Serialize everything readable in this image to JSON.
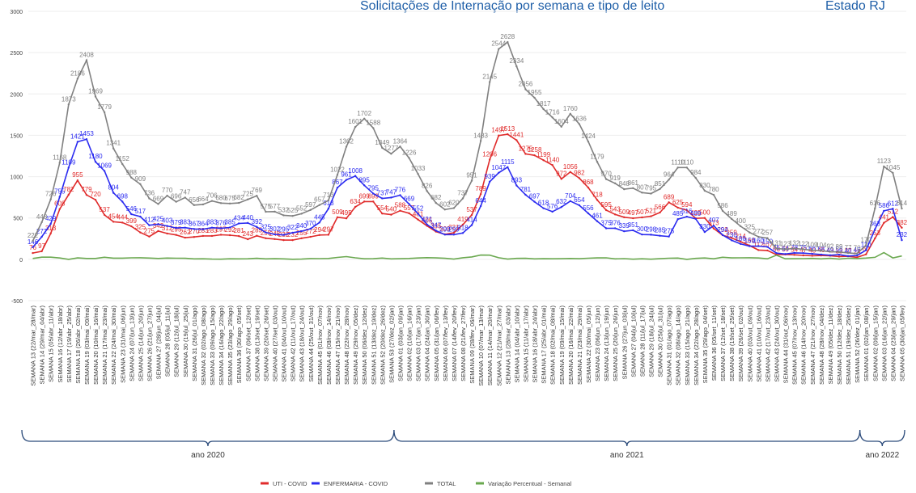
{
  "chart_data": {
    "type": "line",
    "title": "Solicitações de Internação por semana e tipo de leito",
    "subtitle": "Estado RJ",
    "categories": [
      "SEMANA 13 (22/mar_28/mar)",
      "SEMANA 14 (29/mar_04/abr)",
      "SEMANA 15 (05/abr_11/abr)",
      "SEMANA 16 (12/abr_18/abr)",
      "SEMANA 17 (19/abr_25/abr)",
      "SEMANA 18 (26/abr_02/mai)",
      "SEMANA 19 (03/mai_09/mai)",
      "SEMANA 20 (10/mai_16/mai)",
      "SEMANA 21 (17/mai_23/mai)",
      "SEMANA 22 (24/mai_30/mai)",
      "SEMANA 23 (31/mai_06/jun)",
      "SEMANA 24 (07/jun_13/jun)",
      "SEMANA 25 (14/jun_20/jun)",
      "SEMANA 26 (21/jun_27/jun)",
      "SEMANA 27 (28/jun_04/jul)",
      "SEMANA 28 (05/jul_11/jul)",
      "SEMANA 29 (12/jul_18/jul)",
      "SEMANA 30 (19/jul_25/jul)",
      "SEMANA 31 (26/jul_01/ago)",
      "SEMANA 32 (02/ago_08/ago)",
      "SEMANA 33 (09/ago_15/ago)",
      "SEMANA 34 (16/ago_22/ago)",
      "SEMANA 35 (23/ago_29/ago)",
      "SEMANA 36 (30/ago_05/set)",
      "SEMANA 37 (06/set_12/set)",
      "SEMANA 38 (13/set_19/set)",
      "SEMANA 39 (20/set_26/set)",
      "SEMANA 40 (27/set_03/out)",
      "SEMANA 41 (04/out_10/out)",
      "SEMANA 42 (11/out_17/out)",
      "SEMANA 43 (18/out_24/out)",
      "SEMANA 44 (25/out_31/out)",
      "SEMANA 45 (01/nov_07/nov)",
      "SEMANA 46 (08/nov_14/nov)",
      "SEMANA 47 (15/nov_21/nov)",
      "SEMANA 48 (22/nov_28/nov)",
      "SEMANA 49 (29/nov_05/dez)",
      "SEMANA 50 (06/dez_12/dez)",
      "SEMANA 51 (13/dez_19/dez)",
      "SEMANA 52 (20/dez_26/dez)",
      "SEMANA 53 (27/dez_02/jan)",
      "SEMANA 01 (03/jan_09/jan)",
      "SEMANA 02 (10/jan_16/jan)",
      "SEMANA 03 (17/jan_23/jan)",
      "SEMANA 04 (24/jan_30/jan)",
      "SEMANA 05 (31/jan_06/fev)",
      "SEMANA 06 (07/fev_13/fev)",
      "SEMANA 07 (14/fev_20/fev)",
      "SEMANA 08 (21/fev_27/fev)",
      "SEMANA 09 (28/fev_06/mar)",
      "SEMANA 10 (07/mar_13/mar)",
      "SEMANA 11 (14/mar_20/mar)",
      "SEMANA 12 (21/mar_27/mar)",
      "SEMANA 13 (28/mar_03/abr)",
      "SEMANA 14 (04/abr_10/abr)",
      "SEMANA 15 (11/abr_17/abr)",
      "SEMANA 16 (18/abr_24/abr)",
      "SEMANA 17 (25/abr_01/mai)",
      "SEMANA 18 (02/mai_08/mai)",
      "SEMANA 19 (09/mai_15/mai)",
      "SEMANA 20 (16/mai_22/mai)",
      "SEMANA 21 (23/mai_29/mai)",
      "SEMANA 22 (30/mai_05/jun)",
      "SEMANA 23 (06/jun_12/jun)",
      "SEMANA 24 (13/jun_19/jun)",
      "SEMANA 25 (20/jun_26/jun)",
      "SEMANA 26 (27/jun_03/jul)",
      "SEMANA 27 (04/jul_10/jul)",
      "SEMANA 28 (11/jul_17/jul)",
      "SEMANA 29 (18/jul_24/jul)",
      "SEMANA 30 (25/jul_31/jul)",
      "SEMANA 31 (01/ago_07/ago)",
      "SEMANA 32 (08/ago_14/ago)",
      "SEMANA 33 (15/ago_21/ago)",
      "SEMANA 34 (22/ago_28/ago)",
      "SEMANA 35 (29/ago_04/set)",
      "SEMANA 36 (05/set_11/set)",
      "SEMANA 37 (12/set_18/set)",
      "SEMANA 38 (19/set_25/set)",
      "SEMANA 39 (26/set_02/out)",
      "SEMANA 40 (03/out_09/out)",
      "SEMANA 41 (10/out_16/out)",
      "SEMANA 42 (17/out_23/out)",
      "SEMANA 43 (24/out_30/out)",
      "SEMANA 44 (31/out_06/nov)",
      "SEMANA 45 (07/nov_13/nov)",
      "SEMANA 46 (14/nov_20/nov)",
      "SEMANA 47 (21/nov_27/nov)",
      "SEMANA 48 (28/nov_04/dez)",
      "SEMANA 49 (05/dez_11/dez)",
      "SEMANA 50 (12/dez_18/dez)",
      "SEMANA 51 (19/dez_25/dez)",
      "SEMANA 52 (26/dez_01/jan)",
      "SEMANA 01 (02/jan_08/jan)",
      "SEMANA 02 (09/jan_15/jan)",
      "SEMANA 03 (16/jan_22/jan)",
      "SEMANA 04 (23/jan_29/jan)",
      "SEMANA 05 (30/jan_05/fev)"
    ],
    "groups": [
      "ano 2020",
      "ano 2021",
      "ano 2022"
    ],
    "series": [
      {
        "name": "UTI - COVID",
        "color": "#e02b2b",
        "values": [
          76,
          97,
          313,
          608,
          782,
          955,
          779,
          720,
          537,
          454,
          444,
          399,
          325,
          275,
          342,
          312,
          295,
          262,
          270,
          283,
          283,
          297,
          292,
          281,
          243,
          285,
          255,
          245,
          232,
          232,
          255,
          272,
          294,
          297,
          509,
          495,
          634,
          699,
          699,
          554,
          540,
          588,
          557,
          481,
          405,
          335,
          303,
          321,
          419,
          537,
          789,
          1206,
          1497,
          1513,
          1441,
          1275,
          1258,
          1199,
          1140,
          972,
          1056,
          982,
          868,
          718,
          595,
          543,
          509,
          497,
          507,
          521,
          566,
          689,
          625,
          594,
          495,
          500,
          373,
          292,
          259,
          214,
          166,
          112,
          107,
          56,
          59,
          54,
          47,
          43,
          46,
          43,
          33,
          37,
          24,
          60,
          253,
          441,
          512,
          382
        ]
      },
      {
        "name": "ENFERMARIA - COVID",
        "color": "#2b2bf0",
        "values": [
          146,
          272,
          429,
          755,
          1109,
          1421,
          1453,
          1180,
          1069,
          804,
          698,
          546,
          517,
          412,
          425,
          403,
          379,
          383,
          367,
          364,
          383,
          376,
          385,
          434,
          440,
          392,
          325,
          302,
          295,
          322,
          340,
          370,
          445,
          613,
          867,
          961,
          1008,
          895,
          795,
          737,
          747,
          776,
          669,
          552,
          421,
          347,
          299,
          299,
          318,
          414,
          644,
          939,
          1047,
          1115,
          893,
          781,
          697,
          618,
          576,
          632,
          704,
          654,
          556,
          461,
          375,
          376,
          339,
          351,
          300,
          298,
          285,
          275,
          485,
          516,
          489,
          330,
          407,
          294,
          230,
          186,
          159,
          160,
          150,
          75,
          64,
          78,
          75,
          66,
          58,
          49,
          56,
          40,
          46,
          110,
          363,
          586,
          612,
          232
        ]
      },
      {
        "name": "TOTAL",
        "color": "#808080",
        "values": [
          222,
          448,
          726,
          1168,
          1873,
          2186,
          2408,
          1969,
          1779,
          1341,
          1152,
          988,
          909,
          736,
          669,
          770,
          696,
          747,
          656,
          664,
          706,
          680,
          675,
          682,
          725,
          769,
          575,
          577,
          532,
          525,
          552,
          597,
          657,
          713,
          1022,
          1362,
          1601,
          1702,
          1588,
          1349,
          1277,
          1364,
          1226,
          1033,
          826,
          682,
          602,
          620,
          737,
          951,
          1433,
          2145,
          2544,
          2628,
          2334,
          2056,
          1955,
          1817,
          1716,
          1604,
          1760,
          1636,
          1424,
          1179,
          970,
          919,
          848,
          861,
          807,
          795,
          851,
          964,
          1110,
          1110,
          984,
          830,
          780,
          586,
          489,
          400,
          325,
          272,
          257,
          131,
          123,
          132,
          122,
          109,
          104,
          92,
          89,
          77,
          70,
          170,
          616,
          1123,
          1045,
          614
        ]
      },
      {
        "name": "Variação Percentual - Semanal",
        "color": "#6aa84f",
        "values": [
          10,
          26,
          26,
          16,
          0,
          17,
          10,
          10,
          25,
          14,
          14,
          18,
          19,
          15,
          10,
          15,
          13,
          12,
          5,
          6,
          3,
          2,
          6,
          5,
          6,
          12,
          5,
          7,
          5,
          1,
          3,
          9,
          8,
          10,
          23,
          33,
          18,
          6,
          7,
          15,
          5,
          7,
          10,
          16,
          20,
          17,
          12,
          3,
          19,
          29,
          51,
          50,
          19,
          3,
          11,
          12,
          5,
          7,
          6,
          7,
          10,
          7,
          13,
          17,
          18,
          5,
          8,
          2,
          6,
          2,
          7,
          13,
          15,
          0,
          11,
          16,
          6,
          25,
          17,
          18,
          19,
          16,
          6,
          49,
          6,
          7,
          8,
          11,
          5,
          12,
          3,
          13,
          9,
          15,
          24,
          82,
          17,
          41
        ]
      }
    ],
    "ylim": [
      -500,
      3000
    ],
    "yticks": [
      -500,
      0,
      500,
      1000,
      1500,
      2000,
      2500,
      3000
    ],
    "grid": true,
    "legend": "bottom"
  }
}
